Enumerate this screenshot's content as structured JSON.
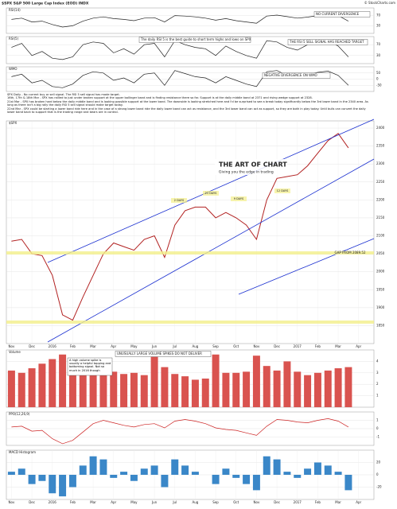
{
  "header": {
    "title": "$SPX S&P 500 Large Cap Index (EOD) INDX",
    "source": "© StockCharts.com"
  },
  "annotations": {
    "rsi14_note": "NO CURRENT DIVERGENCE",
    "rsi5_guide": "The daily RSI 5 is the best guide to short term highs and lows on SPX",
    "rsi5_note": "THE RSI 5 SELL SIGNAL HAS REACHED TARGET",
    "wmo_note": "NEGATIVE DIVERGENCE ON WMO",
    "volume_note": "UNUSUALLY LARGE VOLUME SPIKES DO NOT DELIVER",
    "volume_detail": "A high volume spike is usually a helpful topping and bottoming signal. Not so much in 2016 though",
    "gap": "GAP FROM 2089.52",
    "days": [
      "2 DAYS",
      "21 DAYS",
      "9 DAYS",
      "12 DAYS"
    ]
  },
  "commentary": [
    "SPX Daily - No current buy or sell signal. The RSI 5 sell signal has made target.",
    "16th, 17th & 18th Mar - SPX has rallied to just under broken support at the upper bollinger band and is finding resistance there so far. Support is at the daily middle band at 2371 and rising wedge support at 2328.",
    "21st Mar - SPX has broken hard below the daily middle band and is looking possible support at the lower band. The downside is looking stretched here and I'd be surprised to see a break today significantly below the 3rd lower band in the 2340 area. As long as there isn't a big rally the daily RSI 5 sell signal should make target today.",
    "22nd Mar - SPX could be starting a lower band ride here and in the case of a strong lower band ride the daily lower band can act as resistance, and the 3rd lower band can act as support, so they are both in play today. Until bulls can convert the daily lower band back to support that is the trading range and bears are in control."
  ],
  "logo": {
    "name": "THE ART OF CHART",
    "tagline": "Giving you the edge in trading"
  },
  "chart_data": [
    {
      "type": "line",
      "series": [
        {
          "name": "RSI(14)",
          "color": "#222222",
          "values": [
            55,
            60,
            45,
            48,
            35,
            25,
            30,
            48,
            60,
            65,
            58,
            55,
            50,
            60,
            62,
            45,
            70,
            68,
            65,
            60,
            52,
            58,
            50,
            45,
            40,
            68,
            72,
            66,
            60,
            64,
            70,
            75,
            70,
            48,
            null,
            null
          ]
        }
      ],
      "ylim": [
        0,
        100
      ],
      "yticks": [
        30,
        70
      ]
    },
    {
      "type": "line",
      "series": [
        {
          "name": "RSI(5)",
          "color": "#222222",
          "values": [
            60,
            75,
            30,
            45,
            20,
            15,
            25,
            70,
            80,
            75,
            40,
            55,
            35,
            70,
            75,
            25,
            85,
            70,
            60,
            55,
            30,
            65,
            45,
            30,
            20,
            85,
            80,
            60,
            50,
            70,
            78,
            85,
            65,
            25,
            null,
            null
          ]
        }
      ],
      "ylim": [
        0,
        100
      ],
      "yticks": [
        30,
        70
      ]
    },
    {
      "type": "line",
      "series": [
        {
          "name": "WMO",
          "color": "#222222",
          "values": [
            20,
            40,
            -30,
            -10,
            -60,
            -70,
            -40,
            30,
            60,
            50,
            -10,
            10,
            -30,
            40,
            50,
            -50,
            70,
            45,
            20,
            10,
            -30,
            20,
            -10,
            -40,
            -60,
            60,
            70,
            30,
            10,
            40,
            55,
            65,
            30,
            -50,
            null,
            null
          ]
        }
      ],
      "ylim": [
        -100,
        100
      ],
      "yticks": [
        -50,
        0,
        50
      ]
    },
    {
      "type": "line",
      "categories": [
        "Nov",
        null,
        "Dec",
        null,
        "2016",
        null,
        "Feb",
        null,
        "Mar",
        null,
        "Apr",
        null,
        "May",
        null,
        "Jun",
        null,
        "Jul",
        null,
        "Aug",
        null,
        "Sep",
        null,
        "Oct",
        null,
        "Nov",
        null,
        "Dec",
        null,
        "2017",
        null,
        "Feb",
        null,
        "Mar",
        null,
        "Apr",
        null
      ],
      "series": [
        {
          "name": "$SPX",
          "color": "#b22222",
          "values": [
            2085,
            2090,
            2050,
            2045,
            1990,
            1880,
            1865,
            1930,
            1990,
            2050,
            2080,
            2070,
            2060,
            2090,
            2100,
            2040,
            2130,
            2170,
            2180,
            2180,
            2150,
            2165,
            2150,
            2130,
            2090,
            2200,
            2260,
            2265,
            2270,
            2295,
            2330,
            2365,
            2385,
            2345,
            null,
            null
          ]
        }
      ],
      "ylim": [
        1800,
        2420
      ],
      "yticks": [
        1850,
        1900,
        1950,
        2000,
        2050,
        2100,
        2150,
        2200,
        2250,
        2300,
        2350,
        2400
      ]
    },
    {
      "type": "bar",
      "series": [
        {
          "name": "Volume",
          "color": "#d9534f",
          "values": [
            3.2,
            3.0,
            3.4,
            3.8,
            4.2,
            4.6,
            3.6,
            3.5,
            3.3,
            3.0,
            3.1,
            2.9,
            3.0,
            2.8,
            4.4,
            3.5,
            2.9,
            2.7,
            2.4,
            2.5,
            4.6,
            3.0,
            3.0,
            3.1,
            4.5,
            3.6,
            3.2,
            4.0,
            3.1,
            2.8,
            3.0,
            3.2,
            3.4,
            3.5,
            null,
            null
          ]
        }
      ],
      "ylim": [
        0,
        5
      ],
      "yticks": [
        1,
        2,
        3,
        4
      ]
    },
    {
      "type": "line",
      "series": [
        {
          "name": "PPO(12,26,9)",
          "color": "#cc2222",
          "values": [
            0.2,
            0.3,
            -0.3,
            -0.2,
            -1.2,
            -1.8,
            -1.4,
            -0.4,
            0.6,
            1.0,
            0.7,
            0.4,
            0.2,
            0.5,
            0.6,
            0.1,
            0.9,
            1.1,
            0.9,
            0.6,
            0.1,
            -0.1,
            -0.2,
            -0.5,
            -0.8,
            0.3,
            1.1,
            1.0,
            0.8,
            0.7,
            1.0,
            1.2,
            0.9,
            0.2,
            null,
            null
          ]
        }
      ],
      "ylim": [
        -2,
        2
      ],
      "yticks": [
        -1,
        0,
        1
      ]
    },
    {
      "type": "bar",
      "categories": [
        "Nov",
        null,
        "Dec",
        null,
        "2016",
        null,
        "Feb",
        null,
        "Mar",
        null,
        "Apr",
        null,
        "May",
        null,
        "Jun",
        null,
        "Jul",
        null,
        "Aug",
        null,
        "Sep",
        null,
        "Oct",
        null,
        "Nov",
        null,
        "Dec",
        null,
        "2017",
        null,
        "Feb",
        null,
        "Mar",
        null,
        "Apr",
        null
      ],
      "series": [
        {
          "name": "MACD Histogram",
          "color": "#3a87c8",
          "values": [
            5,
            10,
            -15,
            -10,
            -30,
            -35,
            -20,
            15,
            30,
            25,
            -5,
            5,
            -10,
            10,
            15,
            -20,
            25,
            15,
            5,
            0,
            -15,
            10,
            -5,
            -15,
            -25,
            30,
            25,
            5,
            -5,
            10,
            20,
            15,
            5,
            -25,
            null,
            null
          ]
        }
      ],
      "ylim": [
        -40,
        40
      ],
      "yticks": [
        -20,
        0,
        20
      ]
    }
  ]
}
